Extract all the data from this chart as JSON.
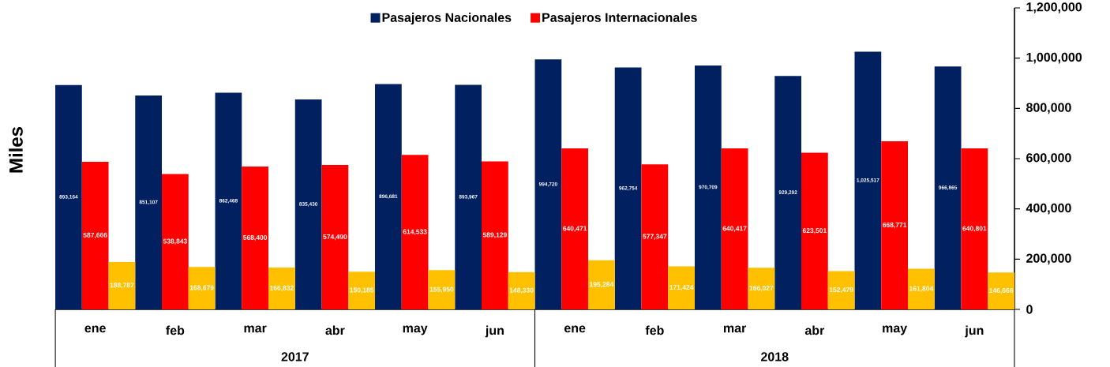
{
  "chart_data": {
    "type": "bar",
    "ylabel": "Miles",
    "categories": [
      "ene",
      "feb",
      "mar",
      "abr",
      "may",
      "jun",
      "ene",
      "feb",
      "mar",
      "abr",
      "may",
      "jun"
    ],
    "annotations": [
      "2017",
      "2018"
    ],
    "series": [
      {
        "name": "Pasajeros Nacionales",
        "color": "#002060",
        "values": [
          893164,
          851107,
          862468,
          835430,
          896681,
          893967,
          994720,
          962754,
          970709,
          929292,
          1025517,
          966865
        ],
        "value_labels": [
          "893,164",
          "851,107",
          "862,468",
          "835,430",
          "896,681",
          "893,967",
          "994,720",
          "962,754",
          "970,709",
          "929,292",
          "1,025,517",
          "966,865"
        ]
      },
      {
        "name": "Pasajeros Internacionales",
        "color": "#ff0000",
        "values": [
          587666,
          538843,
          568400,
          574490,
          614533,
          589129,
          640471,
          577347,
          640417,
          623501,
          668771,
          640801
        ],
        "value_labels": [
          "587,666",
          "538,843",
          "568,400",
          "574,490",
          "614,533",
          "589,129",
          "640,471",
          "577,347",
          "640,417",
          "623,501",
          "668,771",
          "640,801"
        ]
      },
      {
        "color": "#ffc000",
        "values": [
          188787,
          168679,
          166832,
          150185,
          155950,
          148330,
          195284,
          171424,
          166027,
          152479,
          161804,
          146668
        ],
        "value_labels": [
          "188,787",
          "168,679",
          "166,832",
          "150,185",
          "155,950",
          "148,330",
          "195,284",
          "171,424",
          "166,027",
          "152,479",
          "161,804",
          "146,668"
        ]
      }
    ],
    "ylim": [
      0,
      1200000
    ],
    "yticks": [
      0,
      {
        "value": 200000,
        "label": "200,000"
      },
      {
        "value": 400000,
        "label": "400,000"
      },
      {
        "value": 600000,
        "label": "600,000"
      },
      {
        "value": 800000,
        "label": "800,000"
      },
      {
        "value": 1000000,
        "label": "1,000,000"
      },
      {
        "value": 1200000,
        "label": "1,200,000"
      }
    ],
    "legend": "top",
    "grid": false
  }
}
